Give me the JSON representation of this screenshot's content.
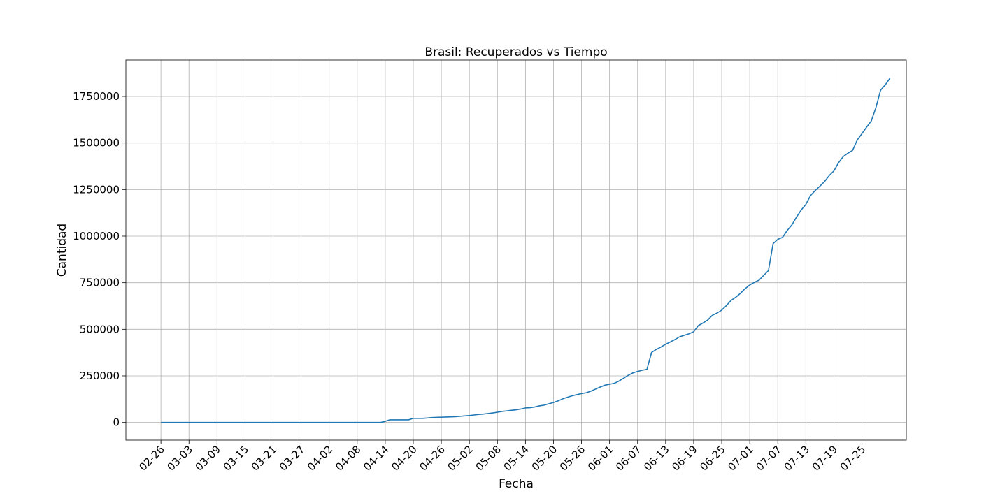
{
  "chart_data": {
    "type": "line",
    "title": "Brasil: Recuperados vs Tiempo",
    "xlabel": "Fecha",
    "ylabel": "Cantidad",
    "x_tick_labels": [
      "02-26",
      "03-03",
      "03-09",
      "03-15",
      "03-21",
      "03-27",
      "04-02",
      "04-08",
      "04-14",
      "04-20",
      "04-26",
      "05-02",
      "05-08",
      "05-14",
      "05-20",
      "05-26",
      "06-01",
      "06-07",
      "06-13",
      "06-19",
      "06-25",
      "07-01",
      "07-07",
      "07-13",
      "07-19",
      "07-25"
    ],
    "y_ticks": [
      0,
      250000,
      500000,
      750000,
      1000000,
      1250000,
      1500000,
      1750000
    ],
    "ylim": [
      -95000,
      1945000
    ],
    "grid": true,
    "x_start_date": "02-26",
    "x_range_days": [
      -7.5,
      159.5
    ],
    "color": "#1f77b4",
    "series": [
      {
        "name": "Recuperados",
        "points": [
          [
            0,
            0
          ],
          [
            47,
            0
          ],
          [
            48,
            6000
          ],
          [
            49,
            14000
          ],
          [
            50,
            14000
          ],
          [
            51,
            14000
          ],
          [
            52,
            14000
          ],
          [
            53,
            14000
          ],
          [
            54,
            22000
          ],
          [
            55,
            22000
          ],
          [
            56,
            22000
          ],
          [
            57,
            24000
          ],
          [
            58,
            26000
          ],
          [
            59,
            27000
          ],
          [
            60,
            28000
          ],
          [
            61,
            29000
          ],
          [
            62,
            30000
          ],
          [
            63,
            31000
          ],
          [
            64,
            33000
          ],
          [
            65,
            35000
          ],
          [
            66,
            37000
          ],
          [
            67,
            40000
          ],
          [
            68,
            43000
          ],
          [
            69,
            45000
          ],
          [
            70,
            48000
          ],
          [
            71,
            51000
          ],
          [
            72,
            55000
          ],
          [
            73,
            59000
          ],
          [
            74,
            62000
          ],
          [
            75,
            65000
          ],
          [
            76,
            68000
          ],
          [
            77,
            72000
          ],
          [
            78,
            78000
          ],
          [
            79,
            79000
          ],
          [
            80,
            83000
          ],
          [
            81,
            89000
          ],
          [
            82,
            93000
          ],
          [
            83,
            100000
          ],
          [
            84,
            107000
          ],
          [
            85,
            116000
          ],
          [
            86,
            127000
          ],
          [
            87,
            135000
          ],
          [
            88,
            143000
          ],
          [
            89,
            149000
          ],
          [
            90,
            155000
          ],
          [
            91,
            159000
          ],
          [
            92,
            168000
          ],
          [
            93,
            179000
          ],
          [
            94,
            190000
          ],
          [
            95,
            200000
          ],
          [
            96,
            205000
          ],
          [
            97,
            210000
          ],
          [
            98,
            222000
          ],
          [
            99,
            237000
          ],
          [
            100,
            253000
          ],
          [
            101,
            266000
          ],
          [
            102,
            274000
          ],
          [
            103,
            280000
          ],
          [
            104,
            285000
          ],
          [
            105,
            376000
          ],
          [
            106,
            392000
          ],
          [
            107,
            405000
          ],
          [
            108,
            420000
          ],
          [
            109,
            432000
          ],
          [
            110,
            445000
          ],
          [
            111,
            460000
          ],
          [
            112,
            468000
          ],
          [
            113,
            476000
          ],
          [
            114,
            487000
          ],
          [
            115,
            520000
          ],
          [
            116,
            534000
          ],
          [
            117,
            550000
          ],
          [
            118,
            575000
          ],
          [
            119,
            587000
          ],
          [
            120,
            603000
          ],
          [
            121,
            627000
          ],
          [
            122,
            655000
          ],
          [
            123,
            672000
          ],
          [
            124,
            693000
          ],
          [
            125,
            718000
          ],
          [
            126,
            738000
          ],
          [
            127,
            752000
          ],
          [
            128,
            764000
          ],
          [
            129,
            790000
          ],
          [
            130,
            815000
          ],
          [
            131,
            960000
          ],
          [
            132,
            983000
          ],
          [
            133,
            993000
          ],
          [
            134,
            1030000
          ],
          [
            135,
            1060000
          ],
          [
            136,
            1102000
          ],
          [
            137,
            1140000
          ],
          [
            138,
            1170000
          ],
          [
            139,
            1218000
          ],
          [
            140,
            1245000
          ],
          [
            141,
            1268000
          ],
          [
            142,
            1293000
          ],
          [
            143,
            1325000
          ],
          [
            144,
            1350000
          ],
          [
            145,
            1394000
          ],
          [
            146,
            1427000
          ],
          [
            147,
            1445000
          ],
          [
            148,
            1460000
          ],
          [
            149,
            1516000
          ],
          [
            150,
            1550000
          ],
          [
            151,
            1585000
          ],
          [
            152,
            1618000
          ],
          [
            153,
            1690000
          ],
          [
            154,
            1784000
          ],
          [
            155,
            1812000
          ],
          [
            156,
            1848000
          ]
        ]
      }
    ]
  }
}
